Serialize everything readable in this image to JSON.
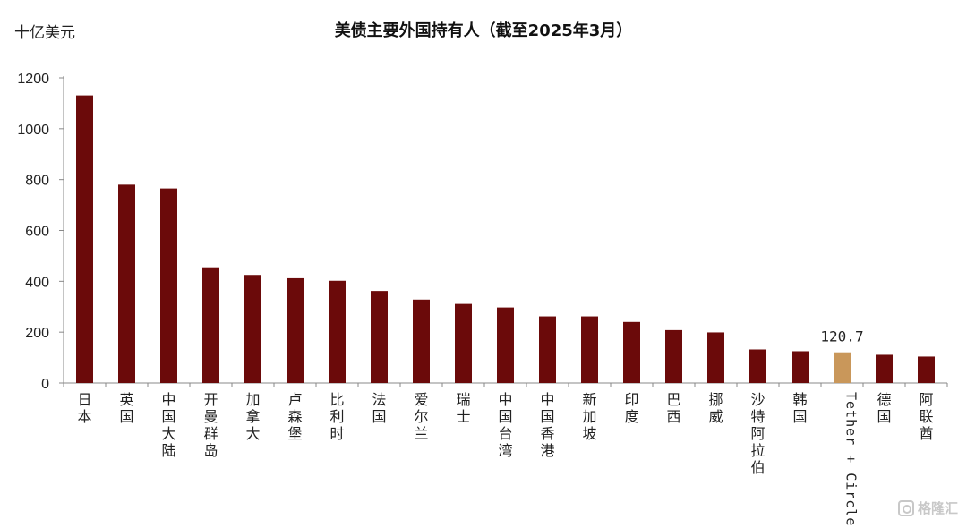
{
  "chart_data": {
    "type": "bar",
    "title": "美债主要外国持有人（截至2025年3月）",
    "ylabel": "十亿美元",
    "xlabel": "",
    "ylim": [
      0,
      1200
    ],
    "yticks": [
      0,
      200,
      400,
      600,
      800,
      1000,
      1200
    ],
    "grid": false,
    "categories": [
      "日本",
      "英国",
      "中国大陆",
      "开曼群岛",
      "加拿大",
      "卢森堡",
      "比利时",
      "法国",
      "爱尔兰",
      "瑞士",
      "中国台湾",
      "中国香港",
      "新加坡",
      "印度",
      "巴西",
      "挪威",
      "沙特阿拉伯",
      "韩国",
      "Tether + Circle",
      "德国",
      "阿联酋"
    ],
    "values": [
      1131,
      780,
      765,
      455,
      425,
      412,
      402,
      362,
      328,
      311,
      297,
      262,
      262,
      240,
      208,
      199,
      132,
      125,
      120.7,
      111,
      104
    ],
    "highlight": {
      "category": "Tether + Circle",
      "label": "120.7"
    },
    "colors": {
      "bar": "#6b0a0a",
      "highlight": "#c9975a",
      "axis": "#888888"
    }
  },
  "watermark": {
    "text": "格隆汇",
    "icon": "gelonghui-logo-icon"
  }
}
